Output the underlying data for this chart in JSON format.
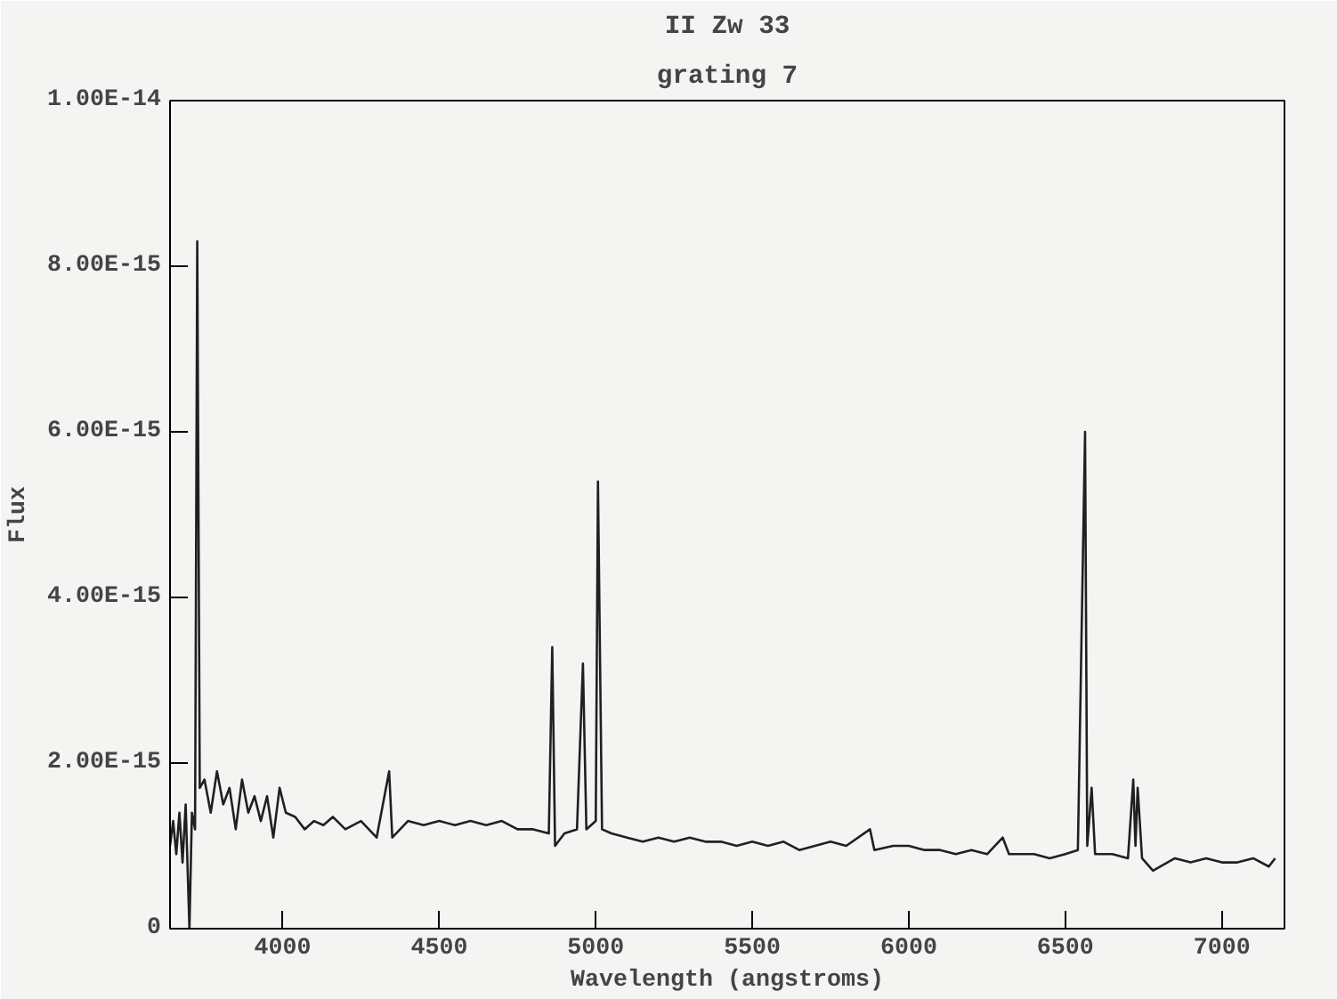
{
  "chart_data": {
    "type": "line",
    "title": "II Zw 33",
    "subtitle": "grating 7",
    "xlabel": "Wavelength (angstroms)",
    "ylabel": "Flux",
    "xlim": [
      3640,
      7200
    ],
    "xticks": [
      4000,
      4500,
      5000,
      5500,
      6000,
      6500,
      7000
    ],
    "ylim": [
      0,
      1e-14
    ],
    "yticks": [
      {
        "value": 0,
        "label": "0"
      },
      {
        "value": 2e-15,
        "label": "2.00E-15"
      },
      {
        "value": 4e-15,
        "label": "4.00E-15"
      },
      {
        "value": 6e-15,
        "label": "6.00E-15"
      },
      {
        "value": 8e-15,
        "label": "8.00E-15"
      },
      {
        "value": 1e-14,
        "label": "1.00E-14"
      }
    ],
    "grid": false,
    "marker": "none",
    "line_style": "solid",
    "series": [
      {
        "color": "#202020",
        "x": [
          3640,
          3650,
          3660,
          3670,
          3680,
          3690,
          3702,
          3710,
          3720,
          3727,
          3735,
          3750,
          3770,
          3790,
          3810,
          3830,
          3850,
          3870,
          3890,
          3910,
          3930,
          3950,
          3970,
          3990,
          4010,
          4040,
          4070,
          4100,
          4130,
          4160,
          4200,
          4250,
          4300,
          4340,
          4350,
          4400,
          4450,
          4500,
          4550,
          4600,
          4650,
          4700,
          4750,
          4800,
          4850,
          4861,
          4870,
          4900,
          4940,
          4959,
          4970,
          5000,
          5007,
          5020,
          5050,
          5100,
          5150,
          5200,
          5250,
          5300,
          5350,
          5400,
          5450,
          5500,
          5550,
          5600,
          5650,
          5700,
          5750,
          5800,
          5876,
          5890,
          5950,
          6000,
          6050,
          6100,
          6150,
          6200,
          6250,
          6300,
          6320,
          6400,
          6450,
          6500,
          6540,
          6563,
          6570,
          6584,
          6595,
          6650,
          6700,
          6717,
          6724,
          6731,
          6745,
          6780,
          6850,
          6900,
          6950,
          7000,
          7050,
          7100,
          7150,
          7170
        ],
        "values": [
          1e-15,
          1.3e-15,
          9e-16,
          1.4e-15,
          8e-16,
          1.5e-15,
          0.0,
          1.4e-15,
          1.2e-15,
          8.3e-15,
          1.7e-15,
          1.8e-15,
          1.4e-15,
          1.9e-15,
          1.5e-15,
          1.7e-15,
          1.2e-15,
          1.8e-15,
          1.4e-15,
          1.6e-15,
          1.3e-15,
          1.6e-15,
          1.1e-15,
          1.7e-15,
          1.4e-15,
          1.35e-15,
          1.2e-15,
          1.3e-15,
          1.25e-15,
          1.35e-15,
          1.2e-15,
          1.3e-15,
          1.1e-15,
          1.9e-15,
          1.1e-15,
          1.3e-15,
          1.25e-15,
          1.3e-15,
          1.25e-15,
          1.3e-15,
          1.25e-15,
          1.3e-15,
          1.2e-15,
          1.2e-15,
          1.15e-15,
          3.4e-15,
          1e-15,
          1.15e-15,
          1.2e-15,
          3.2e-15,
          1.2e-15,
          1.3e-15,
          5.4e-15,
          1.2e-15,
          1.15e-15,
          1.1e-15,
          1.05e-15,
          1.1e-15,
          1.05e-15,
          1.1e-15,
          1.05e-15,
          1.05e-15,
          1e-15,
          1.05e-15,
          1e-15,
          1.05e-15,
          9.5e-16,
          1e-15,
          1.05e-15,
          1e-15,
          1.2e-15,
          9.5e-16,
          1e-15,
          1e-15,
          9.5e-16,
          9.5e-16,
          9e-16,
          9.5e-16,
          9e-16,
          1.1e-15,
          9e-16,
          9e-16,
          8.5e-16,
          9e-16,
          9.5e-16,
          6e-15,
          1e-15,
          1.7e-15,
          9e-16,
          9e-16,
          8.5e-16,
          1.8e-15,
          1e-15,
          1.7e-15,
          8.5e-16,
          7e-16,
          8.5e-16,
          8e-16,
          8.5e-16,
          8e-16,
          8e-16,
          8.5e-16,
          7.5e-16,
          8.5e-16
        ]
      }
    ]
  }
}
